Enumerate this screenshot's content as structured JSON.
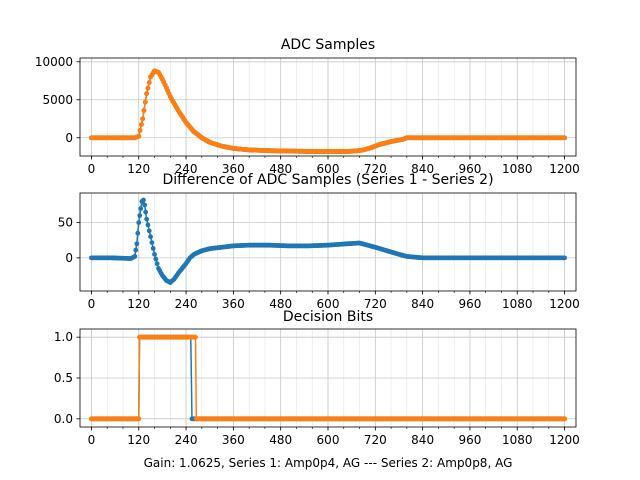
{
  "chart_data": [
    {
      "type": "scatter",
      "title": "ADC Samples",
      "xlim": [
        -29,
        1229
      ],
      "ylim": [
        -2400,
        10500
      ],
      "xticks": [
        0,
        120,
        240,
        360,
        480,
        600,
        720,
        840,
        960,
        1080,
        1200
      ],
      "yticks": [
        0,
        5000,
        10000
      ],
      "grid": true,
      "series": [
        {
          "color": "#1f77b4",
          "x": [
            0,
            110,
            120,
            130,
            140,
            150,
            160,
            170,
            180,
            190,
            200,
            220,
            240,
            260,
            280,
            300,
            330,
            360,
            400,
            450,
            500,
            550,
            600,
            650,
            670,
            690,
            710,
            730,
            760,
            790,
            800,
            850,
            900,
            1000,
            1100,
            1200
          ],
          "y": [
            0,
            0,
            200,
            2500,
            5800,
            8000,
            8800,
            8600,
            7700,
            6600,
            5400,
            3600,
            2000,
            800,
            0,
            -600,
            -1100,
            -1400,
            -1600,
            -1700,
            -1750,
            -1800,
            -1800,
            -1800,
            -1750,
            -1600,
            -1300,
            -900,
            -500,
            -200,
            0,
            0,
            0,
            0,
            0,
            0
          ]
        },
        {
          "color": "#ff7f0e",
          "x": [
            0,
            110,
            120,
            130,
            140,
            150,
            160,
            170,
            180,
            190,
            200,
            220,
            240,
            260,
            280,
            300,
            330,
            360,
            400,
            450,
            500,
            550,
            600,
            650,
            670,
            690,
            710,
            730,
            760,
            790,
            800,
            850,
            900,
            1000,
            1100,
            1200
          ],
          "y": [
            0,
            0,
            200,
            2500,
            5800,
            8000,
            8800,
            8600,
            7700,
            6600,
            5400,
            3600,
            2000,
            800,
            0,
            -600,
            -1100,
            -1400,
            -1600,
            -1700,
            -1750,
            -1800,
            -1800,
            -1800,
            -1750,
            -1600,
            -1300,
            -900,
            -500,
            -200,
            0,
            0,
            0,
            0,
            0,
            0
          ]
        }
      ]
    },
    {
      "type": "scatter",
      "title": "Difference of ADC Samples (Series 1 - Series 2)",
      "xlim": [
        -29,
        1229
      ],
      "ylim": [
        -47,
        92
      ],
      "xticks": [
        0,
        120,
        240,
        360,
        480,
        600,
        720,
        840,
        960,
        1080,
        1200
      ],
      "yticks": [
        0,
        50
      ],
      "grid": true,
      "series": [
        {
          "color": "#1f77b4",
          "x": [
            0,
            50,
            100,
            110,
            115,
            120,
            125,
            128,
            132,
            135,
            140,
            150,
            160,
            170,
            180,
            190,
            200,
            210,
            220,
            230,
            240,
            250,
            260,
            280,
            300,
            330,
            360,
            400,
            450,
            500,
            550,
            600,
            650,
            680,
            700,
            720,
            750,
            780,
            800,
            840,
            900,
            1000,
            1100,
            1200
          ],
          "y": [
            0,
            0,
            -1,
            2,
            20,
            50,
            70,
            80,
            82,
            75,
            55,
            30,
            5,
            -15,
            -25,
            -32,
            -35,
            -30,
            -22,
            -15,
            -8,
            0,
            5,
            10,
            13,
            15,
            17,
            18,
            18,
            17,
            17,
            18,
            20,
            21,
            18,
            15,
            10,
            5,
            2,
            0,
            0,
            0,
            0,
            0
          ]
        }
      ]
    },
    {
      "type": "scatter",
      "title": "Decision Bits",
      "xlabel": "Gain: 1.0625, Series 1: Amp0p4, AG --- Series 2: Amp0p8, AG",
      "xlim": [
        -29,
        1229
      ],
      "ylim": [
        -0.1,
        1.1
      ],
      "xticks": [
        0,
        120,
        240,
        360,
        480,
        600,
        720,
        840,
        960,
        1080,
        1200
      ],
      "yticks": [
        0.0,
        0.5,
        1.0
      ],
      "grid": true,
      "series": [
        {
          "color": "#1f77b4",
          "x": [
            0,
            118,
            120,
            122,
            250,
            252,
            255,
            1200
          ],
          "y": [
            0,
            0,
            0,
            1,
            1,
            1,
            0,
            0
          ]
        },
        {
          "color": "#ff7f0e",
          "x": [
            0,
            118,
            120,
            122,
            262,
            264,
            266,
            1200
          ],
          "y": [
            0,
            0,
            0,
            1,
            1,
            1,
            0,
            0
          ]
        }
      ]
    }
  ]
}
